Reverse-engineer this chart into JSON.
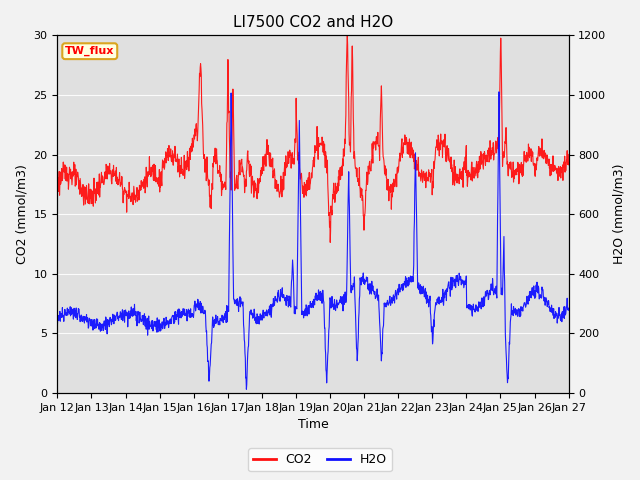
{
  "title": "LI7500 CO2 and H2O",
  "xlabel": "Time",
  "ylabel_left": "CO2 (mmol/m3)",
  "ylabel_right": "H2O (mmol/m3)",
  "site_label": "TW_flux",
  "x_tick_labels": [
    "Jan 12",
    "Jan 13",
    "Jan 14",
    "Jan 15",
    "Jan 16",
    "Jan 17",
    "Jan 18",
    "Jan 19",
    "Jan 20",
    "Jan 21",
    "Jan 22",
    "Jan 23",
    "Jan 24",
    "Jan 25",
    "Jan 26",
    "Jan 27"
  ],
  "ylim_left": [
    0,
    30
  ],
  "ylim_right": [
    0,
    1200
  ],
  "background_color": "#e8e8e8",
  "plot_bg_color": "#e0e0e0",
  "co2_color": "#ff1010",
  "h2o_color": "#1010ff",
  "legend_co2": "CO2",
  "legend_h2o": "H2O",
  "title_fontsize": 11,
  "label_fontsize": 9,
  "tick_fontsize": 8,
  "fig_bg": "#f2f2f2"
}
